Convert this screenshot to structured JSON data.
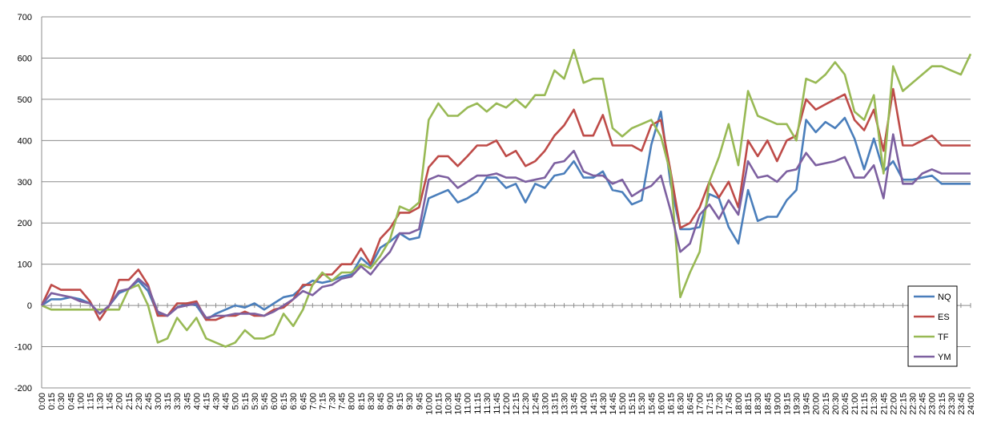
{
  "chart_data": {
    "type": "line",
    "title": "",
    "xlabel": "",
    "ylabel": "",
    "ylim": [
      -200,
      700
    ],
    "yticks": [
      -200,
      -100,
      0,
      100,
      200,
      300,
      400,
      500,
      600,
      700
    ],
    "grid": "horizontal",
    "legend_position": "right",
    "categories": [
      "0:00",
      "0:15",
      "0:30",
      "0:45",
      "1:00",
      "1:15",
      "1:30",
      "1:45",
      "2:00",
      "2:15",
      "2:30",
      "2:45",
      "3:00",
      "3:15",
      "3:30",
      "3:45",
      "4:00",
      "4:15",
      "4:30",
      "4:45",
      "5:00",
      "5:15",
      "5:30",
      "5:45",
      "6:00",
      "6:15",
      "6:30",
      "6:45",
      "7:00",
      "7:15",
      "7:30",
      "7:45",
      "8:00",
      "8:15",
      "8:30",
      "8:45",
      "9:00",
      "9:15",
      "9:30",
      "9:45",
      "10:00",
      "10:15",
      "10:30",
      "10:45",
      "11:00",
      "11:15",
      "11:30",
      "11:45",
      "12:00",
      "12:15",
      "12:30",
      "12:45",
      "13:00",
      "13:15",
      "13:30",
      "13:45",
      "14:00",
      "14:15",
      "14:30",
      "14:45",
      "15:00",
      "15:15",
      "15:30",
      "15:45",
      "16:00",
      "16:15",
      "16:30",
      "16:45",
      "17:00",
      "17:15",
      "17:30",
      "17:45",
      "18:00",
      "18:15",
      "18:30",
      "18:45",
      "19:00",
      "19:15",
      "19:30",
      "19:45",
      "20:00",
      "20:15",
      "20:30",
      "20:45",
      "21:00",
      "21:15",
      "21:30",
      "21:45",
      "22:00",
      "22:15",
      "22:30",
      "22:45",
      "23:00",
      "23:15",
      "23:30",
      "23:45",
      "24:00"
    ],
    "series": [
      {
        "name": "NQ",
        "color": "#4a7ebb",
        "values": [
          0,
          15,
          15,
          20,
          15,
          5,
          -20,
          0,
          30,
          40,
          60,
          35,
          -20,
          -25,
          -5,
          5,
          0,
          -35,
          -20,
          -10,
          0,
          -5,
          5,
          -10,
          5,
          20,
          25,
          45,
          60,
          55,
          60,
          70,
          75,
          115,
          95,
          140,
          155,
          175,
          160,
          165,
          260,
          270,
          280,
          250,
          260,
          275,
          310,
          310,
          285,
          295,
          250,
          295,
          285,
          315,
          320,
          350,
          310,
          310,
          325,
          280,
          275,
          245,
          255,
          390,
          470,
          295,
          185,
          185,
          190,
          270,
          260,
          190,
          150,
          280,
          205,
          215,
          215,
          255,
          280,
          450,
          420,
          445,
          430,
          455,
          405,
          330,
          405,
          325,
          350,
          305,
          305,
          310,
          315,
          295,
          295,
          295,
          295
        ]
      },
      {
        "name": "ES",
        "color": "#be4b48",
        "values": [
          0,
          50,
          38,
          38,
          38,
          10,
          -35,
          0,
          62,
          62,
          87,
          50,
          -25,
          -25,
          5,
          5,
          10,
          -35,
          -35,
          -25,
          -25,
          -15,
          -25,
          -25,
          -10,
          -5,
          15,
          50,
          50,
          75,
          75,
          100,
          100,
          138,
          100,
          162,
          187,
          225,
          225,
          238,
          335,
          362,
          362,
          338,
          362,
          388,
          388,
          400,
          362,
          375,
          338,
          350,
          375,
          412,
          437,
          475,
          412,
          412,
          462,
          388,
          388,
          388,
          375,
          437,
          450,
          325,
          188,
          200,
          238,
          300,
          262,
          300,
          238,
          400,
          362,
          400,
          350,
          400,
          412,
          500,
          475,
          488,
          500,
          512,
          450,
          425,
          475,
          375,
          525,
          388,
          388,
          400,
          412,
          388,
          388,
          388,
          388
        ]
      },
      {
        "name": "TF",
        "color": "#98b954",
        "values": [
          0,
          -10,
          -10,
          -10,
          -10,
          -10,
          -10,
          -10,
          -10,
          40,
          50,
          0,
          -90,
          -80,
          -30,
          -60,
          -30,
          -80,
          -90,
          -100,
          -90,
          -60,
          -80,
          -80,
          -70,
          -20,
          -50,
          -10,
          50,
          80,
          60,
          80,
          80,
          100,
          90,
          120,
          160,
          240,
          230,
          250,
          450,
          490,
          460,
          460,
          480,
          490,
          470,
          490,
          480,
          500,
          480,
          510,
          510,
          570,
          550,
          620,
          540,
          550,
          550,
          430,
          410,
          430,
          440,
          450,
          410,
          320,
          20,
          80,
          130,
          300,
          360,
          440,
          340,
          520,
          460,
          450,
          440,
          440,
          400,
          550,
          540,
          560,
          590,
          560,
          470,
          450,
          510,
          320,
          580,
          520,
          540,
          560,
          580,
          580,
          570,
          560,
          610
        ]
      },
      {
        "name": "YM",
        "color": "#7d60a0",
        "values": [
          0,
          30,
          25,
          20,
          10,
          5,
          -20,
          0,
          35,
          40,
          65,
          45,
          -15,
          -25,
          -5,
          0,
          5,
          -30,
          -25,
          -25,
          -20,
          -20,
          -20,
          -25,
          -15,
          0,
          15,
          35,
          25,
          45,
          50,
          65,
          70,
          95,
          75,
          105,
          130,
          175,
          175,
          185,
          305,
          315,
          310,
          285,
          300,
          315,
          315,
          320,
          310,
          310,
          300,
          305,
          310,
          345,
          350,
          375,
          325,
          315,
          315,
          295,
          305,
          265,
          280,
          290,
          315,
          230,
          130,
          150,
          220,
          245,
          210,
          255,
          220,
          350,
          310,
          315,
          300,
          325,
          330,
          370,
          340,
          345,
          350,
          360,
          310,
          310,
          340,
          260,
          415,
          295,
          295,
          320,
          330,
          320,
          320,
          320,
          320
        ]
      }
    ]
  }
}
